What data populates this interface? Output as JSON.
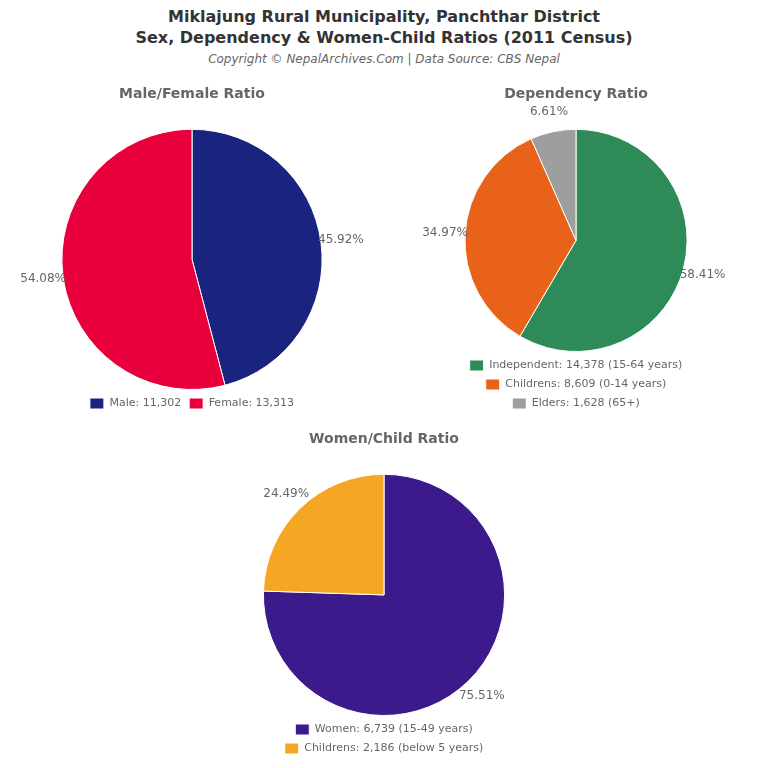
{
  "title": [
    "Miklajung Rural Municipality, Panchthar District",
    "Sex, Dependency & Women-Child Ratios (2011 Census)"
  ],
  "subtitle": "Copyright © NepalArchives.Com | Data Source: CBS Nepal",
  "chart_data": [
    {
      "type": "pie",
      "title": "Male/Female Ratio",
      "categories": [
        "Male: 11,302",
        "Female: 13,313"
      ],
      "values": [
        45.92,
        54.08
      ],
      "value_labels": [
        "45.92%",
        "54.08%"
      ],
      "colors": [
        "#1a237e",
        "#e8003d"
      ],
      "data_labels": true
    },
    {
      "type": "pie",
      "title": "Dependency Ratio",
      "categories": [
        "Independent: 14,378 (15-64 years)",
        "Childrens: 8,609 (0-14 years)",
        "Elders: 1,628 (65+)"
      ],
      "values": [
        58.41,
        34.97,
        6.61
      ],
      "value_labels": [
        "58.41%",
        "34.97%",
        "6.61%"
      ],
      "colors": [
        "#2e8b57",
        "#e8621a",
        "#9e9e9e"
      ],
      "data_labels": true
    },
    {
      "type": "pie",
      "title": "Women/Child Ratio",
      "categories": [
        "Women: 6,739 (15-49 years)",
        "Childrens: 2,186 (below 5 years)"
      ],
      "values": [
        75.51,
        24.49
      ],
      "value_labels": [
        "75.51%",
        "24.49%"
      ],
      "colors": [
        "#3d1a8c",
        "#f5a623"
      ],
      "data_labels": true
    }
  ]
}
